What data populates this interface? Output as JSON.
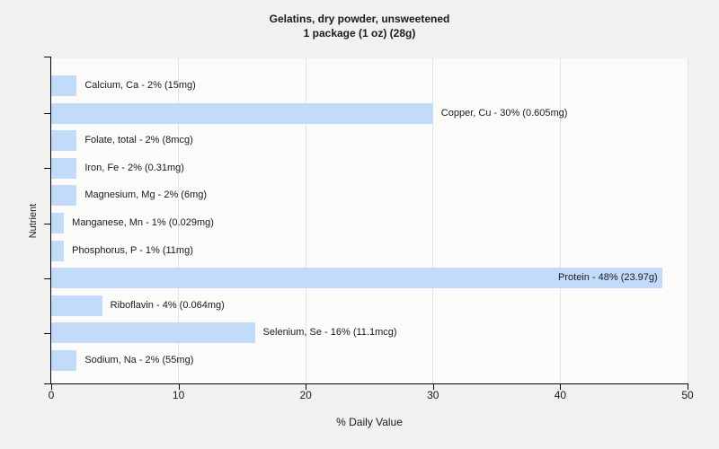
{
  "title": {
    "line1": "Gelatins, dry powder, unsweetened",
    "line2": "1 package (1 oz) (28g)"
  },
  "chart_data": {
    "type": "bar",
    "orientation": "horizontal",
    "title": "Gelatins, dry powder, unsweetened",
    "subtitle": "1 package (1 oz) (28g)",
    "xlabel": "% Daily Value",
    "ylabel": "Nutrient",
    "xlim": [
      0,
      50
    ],
    "x_ticks": [
      0,
      10,
      20,
      30,
      40,
      50
    ],
    "grid": "vertical gridlines at major x ticks",
    "legend": "none",
    "bars": [
      {
        "nutrient": "Calcium, Ca",
        "percent_dv": 2,
        "amount": "15mg",
        "label": "Calcium, Ca - 2% (15mg)",
        "label_inside": false
      },
      {
        "nutrient": "Copper, Cu",
        "percent_dv": 30,
        "amount": "0.605mg",
        "label": "Copper, Cu - 30% (0.605mg)",
        "label_inside": false
      },
      {
        "nutrient": "Folate, total",
        "percent_dv": 2,
        "amount": "8mcg",
        "label": "Folate, total - 2% (8mcg)",
        "label_inside": false
      },
      {
        "nutrient": "Iron, Fe",
        "percent_dv": 2,
        "amount": "0.31mg",
        "label": "Iron, Fe - 2% (0.31mg)",
        "label_inside": false
      },
      {
        "nutrient": "Magnesium, Mg",
        "percent_dv": 2,
        "amount": "6mg",
        "label": "Magnesium, Mg - 2% (6mg)",
        "label_inside": false
      },
      {
        "nutrient": "Manganese, Mn",
        "percent_dv": 1,
        "amount": "0.029mg",
        "label": "Manganese, Mn - 1% (0.029mg)",
        "label_inside": false
      },
      {
        "nutrient": "Phosphorus, P",
        "percent_dv": 1,
        "amount": "11mg",
        "label": "Phosphorus, P - 1% (11mg)",
        "label_inside": false
      },
      {
        "nutrient": "Protein",
        "percent_dv": 48,
        "amount": "23.97g",
        "label": "Protein - 48% (23.97g)",
        "label_inside": true
      },
      {
        "nutrient": "Riboflavin",
        "percent_dv": 4,
        "amount": "0.064mg",
        "label": "Riboflavin - 4% (0.064mg)",
        "label_inside": false
      },
      {
        "nutrient": "Selenium, Se",
        "percent_dv": 16,
        "amount": "11.1mcg",
        "label": "Selenium, Se - 16% (11.1mcg)",
        "label_inside": false
      },
      {
        "nutrient": "Sodium, Na",
        "percent_dv": 2,
        "amount": "55mg",
        "label": "Sodium, Na - 2% (55mg)",
        "label_inside": false
      }
    ],
    "colors": {
      "page_bg": "#f1f1ef",
      "plot_bg": "#fbfbf9",
      "bar_fill": "#c2dbfa",
      "gridline": "#e3e3e0",
      "axis": "#000000",
      "text": "#1a1a1a"
    }
  }
}
